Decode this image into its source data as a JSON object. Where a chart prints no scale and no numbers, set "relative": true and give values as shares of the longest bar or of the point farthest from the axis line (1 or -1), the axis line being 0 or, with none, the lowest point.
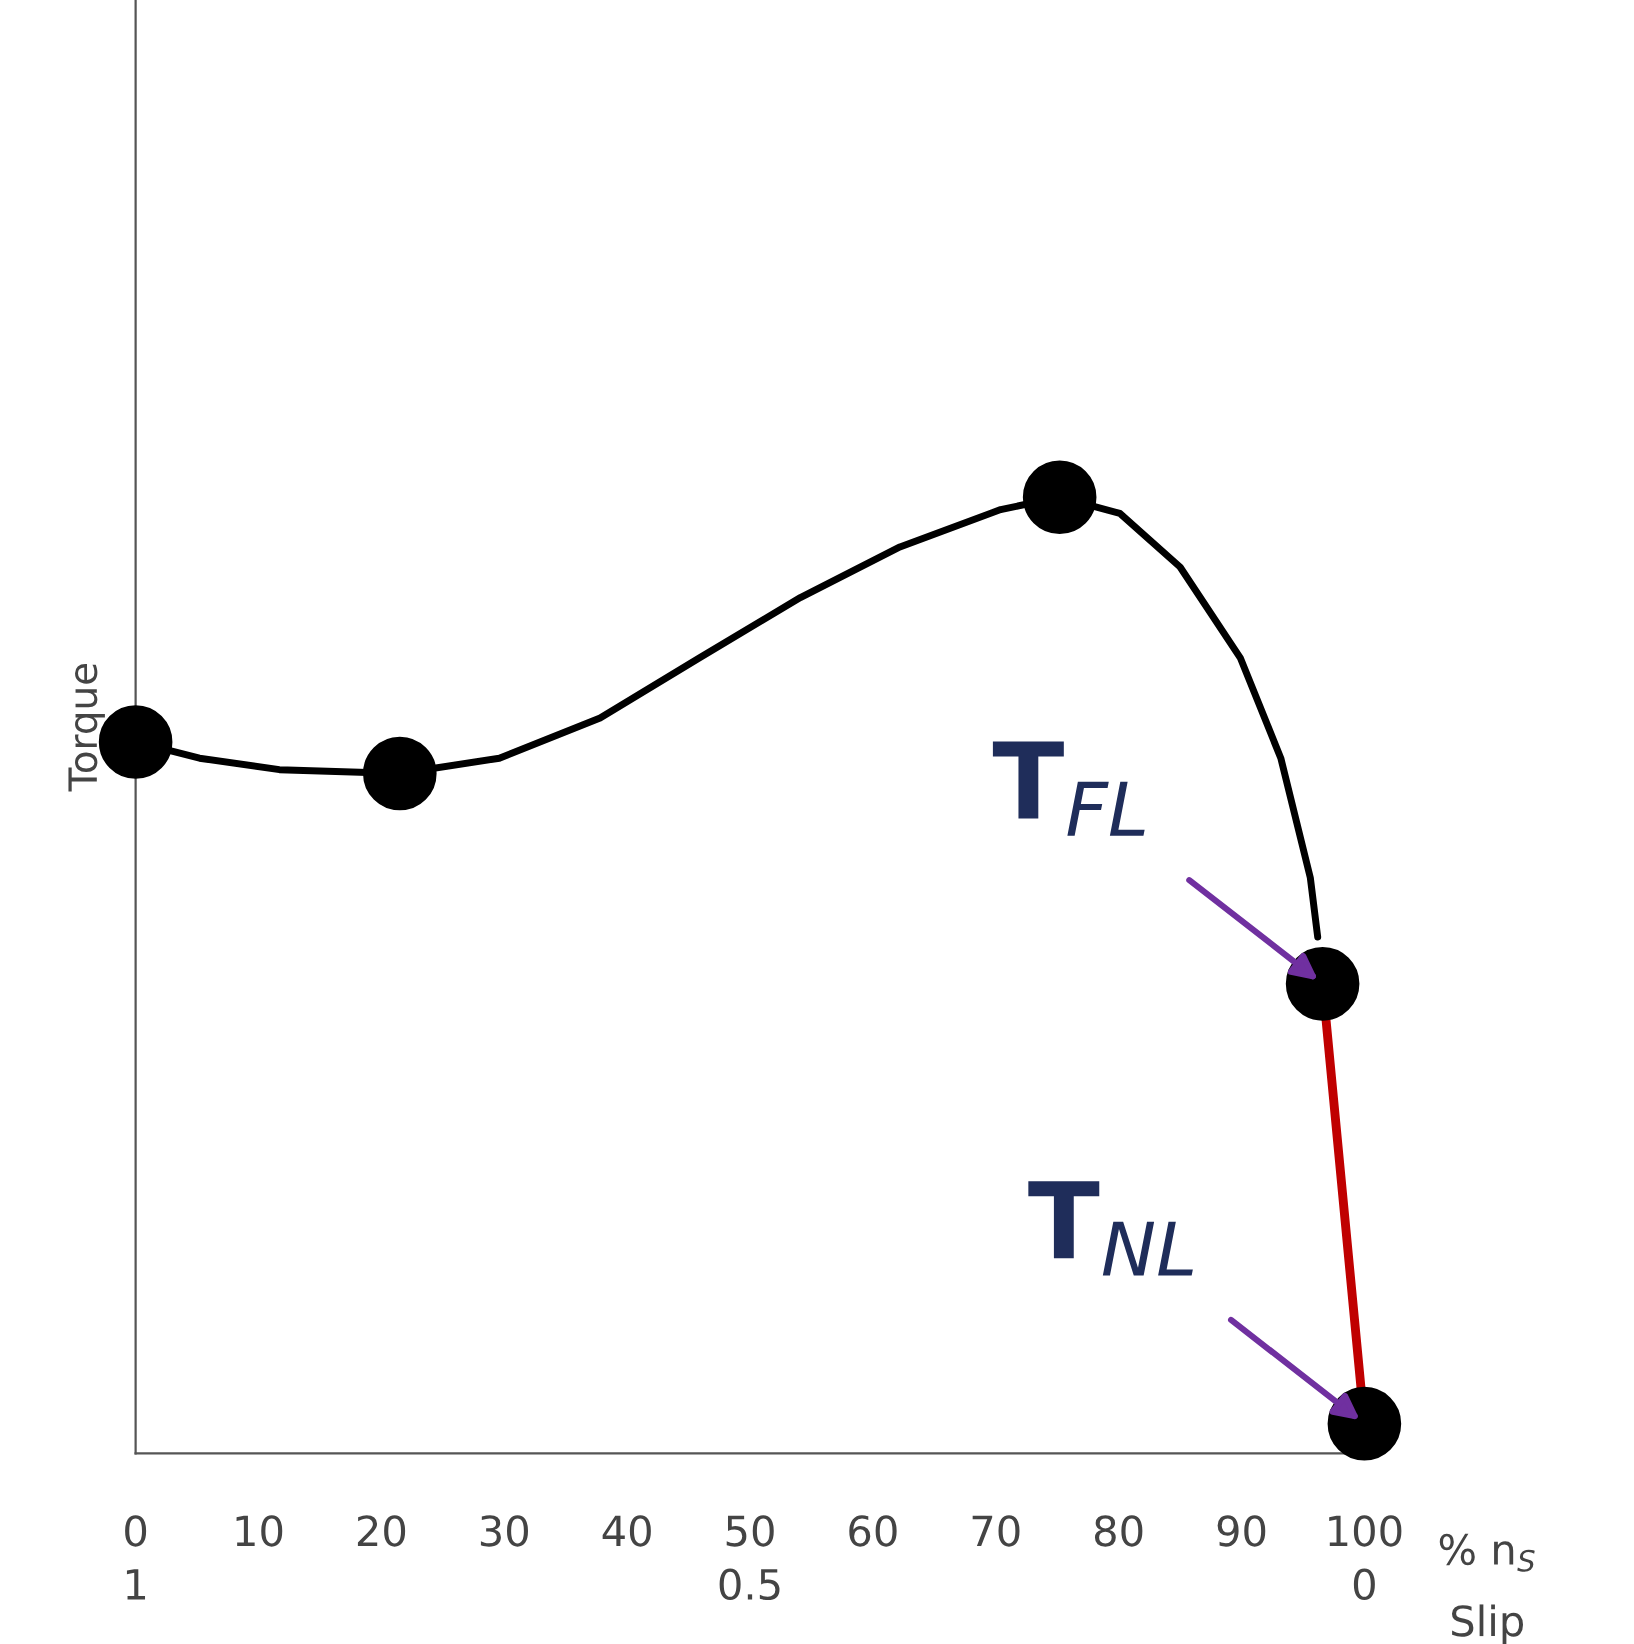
{
  "chart_data": {
    "type": "line",
    "relative": true,
    "xlabel": "% n$_{S}$",
    "ylabel": "Torque",
    "x2label": "Slip",
    "xlim": [
      0,
      100
    ],
    "xticks": [
      0,
      10,
      20,
      30,
      40,
      50,
      60,
      70,
      80,
      90,
      100
    ],
    "x2lim": [
      1,
      0
    ],
    "x2ticks": [
      1,
      0.5,
      0
    ],
    "series": [
      {
        "color": "#000000",
        "x": [
          0,
          5.2,
          11.7,
          21.5,
          29.6,
          37.8,
          45.9,
          54.1,
          62.2,
          70.4,
          75.2,
          80.1,
          85.0,
          89.9,
          93.2,
          95.6,
          96.2
        ],
        "values": [
          0.744,
          0.727,
          0.715,
          0.711,
          0.727,
          0.769,
          0.832,
          0.895,
          0.948,
          0.987,
          1,
          0.983,
          0.927,
          0.832,
          0.727,
          0.602,
          0.54
        ]
      },
      {
        "color": "#c00000",
        "x": [
          96.6,
          100
        ],
        "values": [
          0.491,
          0.031
        ]
      },
      {
        "type": "scatter",
        "marker": "circle",
        "color": "#000000",
        "x": [
          0,
          21.5,
          75.2,
          96.6,
          100
        ],
        "values": [
          0.744,
          0.711,
          1,
          0.491,
          0.031
        ]
      }
    ],
    "annotations": [
      {
        "text": "T$_{FL}$",
        "x": 96.6,
        "y": 0.491
      },
      {
        "text": "T$_{NL}$",
        "x": 100,
        "y": 0.031
      }
    ]
  }
}
